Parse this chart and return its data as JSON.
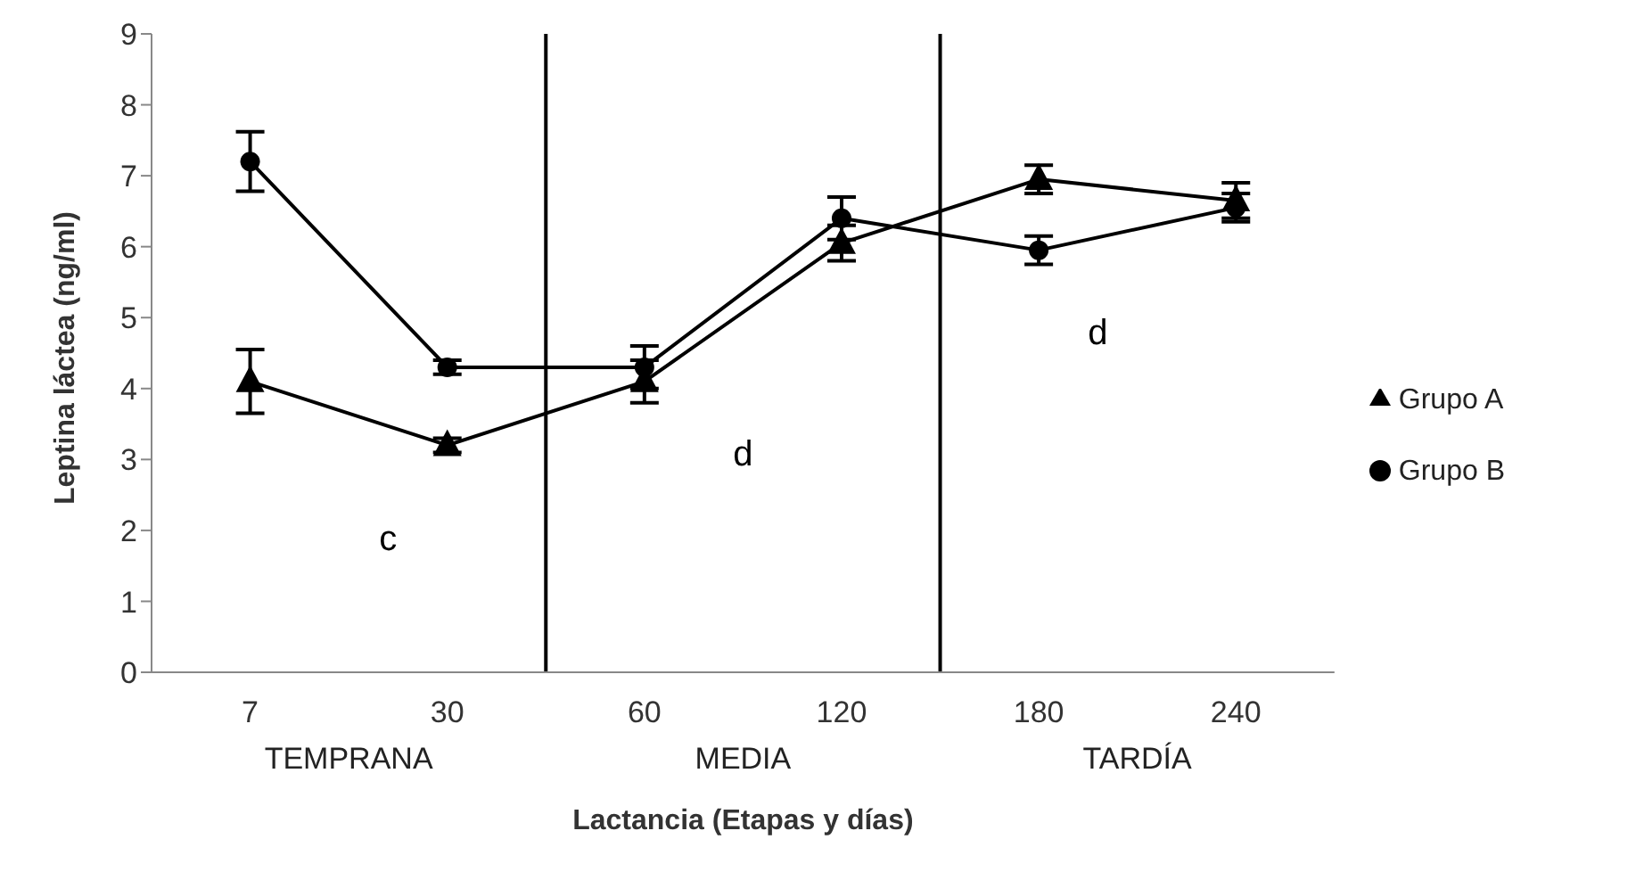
{
  "chart_data": {
    "type": "line",
    "xlabel": "Lactancia (Etapas y días)",
    "ylabel": "Leptina láctea (ng/ml)",
    "categories": [
      "7",
      "30",
      "60",
      "120",
      "180",
      "240"
    ],
    "series": [
      {
        "name": "Grupo A",
        "color": "#000000",
        "marker": "triangle",
        "values": [
          4.1,
          3.2,
          4.1,
          6.05,
          6.95,
          6.65
        ],
        "errors": [
          0.45,
          0.1,
          0.3,
          0.25,
          0.2,
          0.25
        ]
      },
      {
        "name": "Grupo B",
        "color": "#000000",
        "marker": "circle",
        "values": [
          7.2,
          4.3,
          4.3,
          6.4,
          5.95,
          6.55
        ],
        "errors": [
          0.42,
          0.1,
          0.3,
          0.3,
          0.2,
          0.2
        ]
      }
    ],
    "ylim": [
      0,
      9
    ],
    "yticks": [
      0,
      1,
      2,
      3,
      4,
      5,
      6,
      7,
      8,
      9
    ],
    "grid": false,
    "legend": "right",
    "line_style": "solid",
    "annotations": [
      "TEMPRANA",
      "MEDIA",
      "TARDÍA",
      "c",
      "d",
      "d"
    ]
  }
}
